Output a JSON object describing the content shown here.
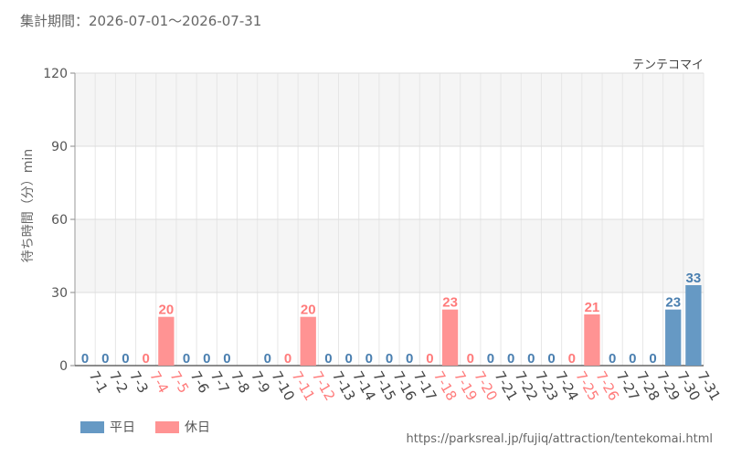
{
  "header": {
    "period": "集計期間：2026-07-01～2026-07-31",
    "attraction": "テンテコマイ"
  },
  "footer": {
    "source": "https://parksreal.jp/fujiq/attraction/tentekomai.html"
  },
  "colors": {
    "weekday": "#6699c4",
    "holiday": "#ff9393",
    "weekday_text": "#4a7fb0",
    "holiday_text": "#ff7b7b",
    "band": "#f5f5f5"
  },
  "chart_data": {
    "type": "bar",
    "title": "",
    "xlabel": "",
    "ylabel": "待ち時間（分）min",
    "ylim": [
      0,
      120
    ],
    "yticks": [
      0,
      30,
      60,
      90,
      120
    ],
    "grid": true,
    "legend_position": "bottom-left",
    "categories": [
      "7-1",
      "7-2",
      "7-3",
      "7-4",
      "7-5",
      "7-6",
      "7-7",
      "7-8",
      "7-9",
      "7-10",
      "7-11",
      "7-12",
      "7-13",
      "7-14",
      "7-15",
      "7-16",
      "7-17",
      "7-18",
      "7-19",
      "7-20",
      "7-21",
      "7-22",
      "7-23",
      "7-24",
      "7-25",
      "7-26",
      "7-27",
      "7-28",
      "7-29",
      "7-30",
      "7-31"
    ],
    "values": [
      0,
      0,
      0,
      0,
      20,
      0,
      0,
      0,
      null,
      0,
      0,
      20,
      0,
      0,
      0,
      0,
      0,
      0,
      23,
      0,
      0,
      0,
      0,
      0,
      0,
      21,
      0,
      0,
      0,
      23,
      33
    ],
    "day_type": [
      "weekday",
      "weekday",
      "weekday",
      "holiday",
      "holiday",
      "weekday",
      "weekday",
      "weekday",
      "weekday",
      "weekday",
      "holiday",
      "holiday",
      "weekday",
      "weekday",
      "weekday",
      "weekday",
      "weekday",
      "holiday",
      "holiday",
      "holiday",
      "weekday",
      "weekday",
      "weekday",
      "weekday",
      "holiday",
      "holiday",
      "weekday",
      "weekday",
      "weekday",
      "weekday",
      "weekday"
    ],
    "series": [
      {
        "name": "平日",
        "key": "weekday"
      },
      {
        "name": "休日",
        "key": "holiday"
      }
    ]
  }
}
